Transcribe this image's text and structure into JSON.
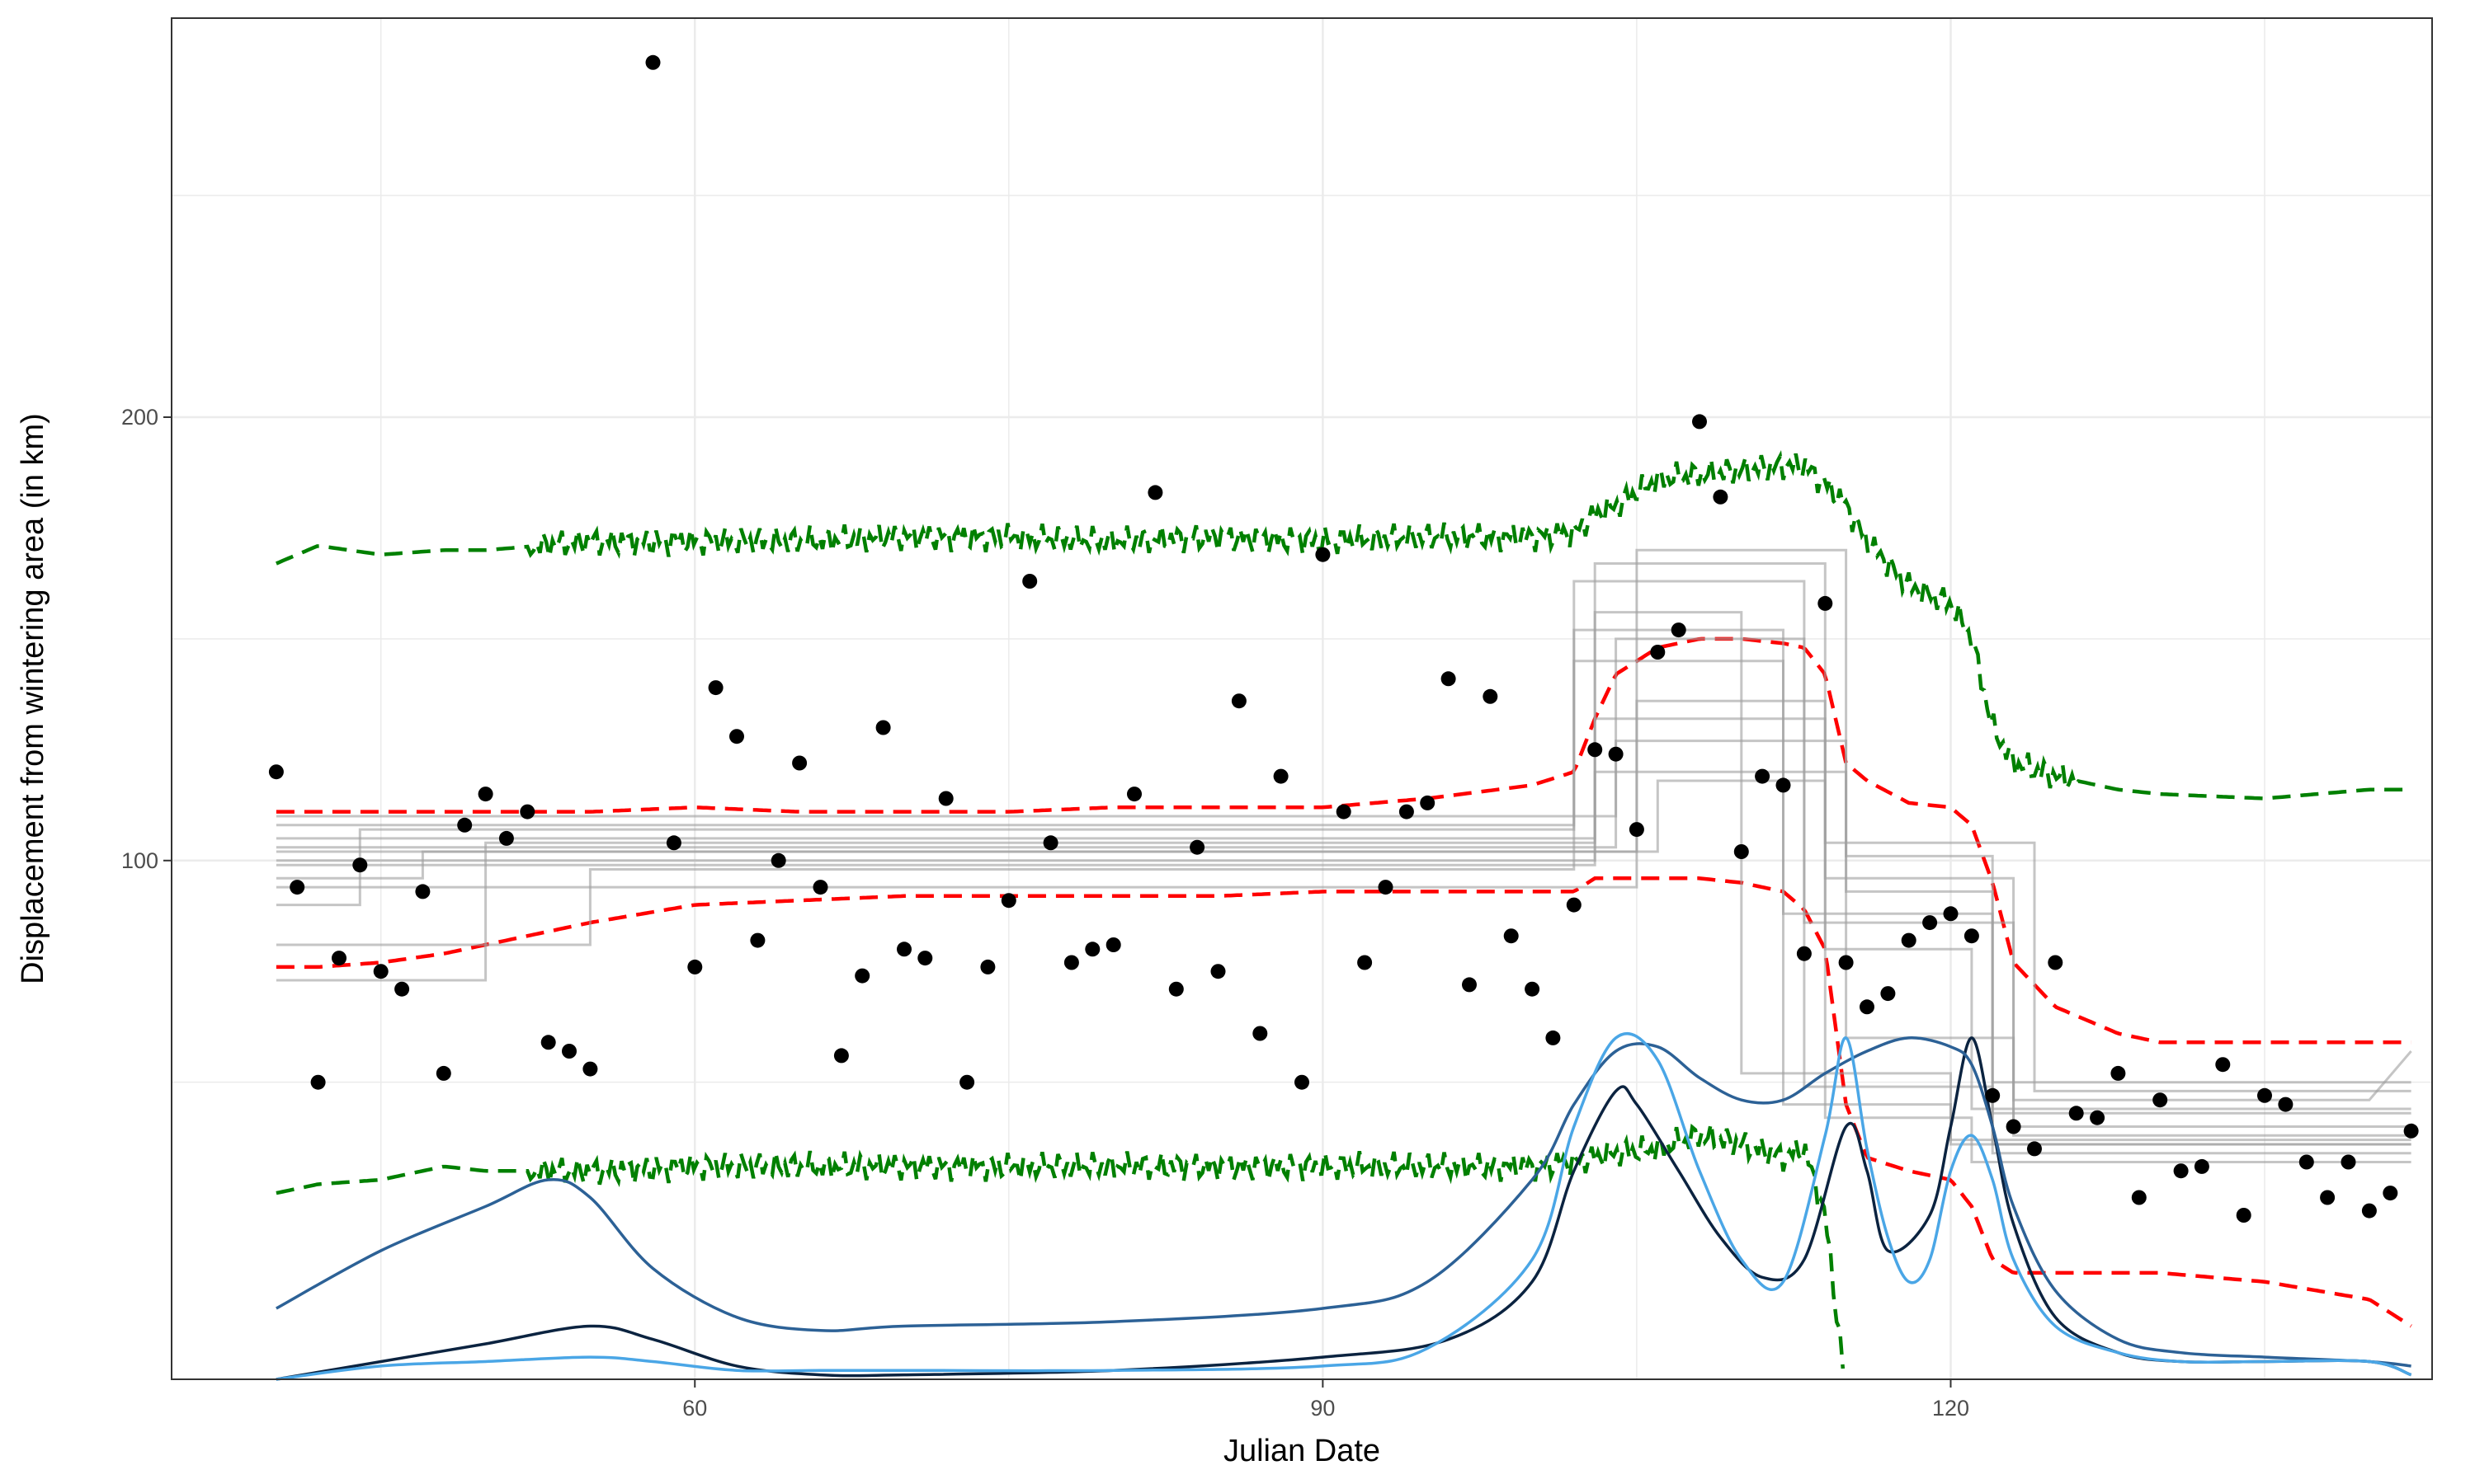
{
  "chart_data": {
    "type": "scatter",
    "title": "",
    "xlabel": "Julian Date",
    "ylabel": "Displacement from wintering area (in km)",
    "xlim": [
      35,
      143
    ],
    "ylim": [
      -17,
      290
    ],
    "x_ticks": [
      60,
      90,
      120
    ],
    "y_ticks": [
      100,
      200
    ],
    "x_tick_labels": [
      "60",
      "90",
      "120"
    ],
    "y_tick_labels": [
      "100",
      "200"
    ],
    "grid": true,
    "colors": {
      "points": "#000000",
      "envelope_outer": "#008000",
      "envelope_inner": "#ff0000",
      "step_lines": "#9e9e9e",
      "density": [
        "#0b2340",
        "#2c6196",
        "#4aa6e6"
      ],
      "grid": "#ebebeb",
      "panel_border": "#333333"
    },
    "points": [
      [
        40,
        120
      ],
      [
        41,
        94
      ],
      [
        42,
        50
      ],
      [
        43,
        78
      ],
      [
        44,
        99
      ],
      [
        45,
        75
      ],
      [
        46,
        71
      ],
      [
        47,
        93
      ],
      [
        48,
        52
      ],
      [
        49,
        108
      ],
      [
        50,
        115
      ],
      [
        51,
        105
      ],
      [
        52,
        111
      ],
      [
        53,
        59
      ],
      [
        54,
        57
      ],
      [
        55,
        53
      ],
      [
        58,
        280
      ],
      [
        59,
        104
      ],
      [
        60,
        76
      ],
      [
        61,
        139
      ],
      [
        62,
        128
      ],
      [
        63,
        82
      ],
      [
        64,
        100
      ],
      [
        65,
        122
      ],
      [
        66,
        94
      ],
      [
        67,
        56
      ],
      [
        68,
        74
      ],
      [
        69,
        130
      ],
      [
        70,
        80
      ],
      [
        71,
        78
      ],
      [
        72,
        114
      ],
      [
        73,
        50
      ],
      [
        74,
        76
      ],
      [
        75,
        91
      ],
      [
        76,
        163
      ],
      [
        77,
        104
      ],
      [
        78,
        77
      ],
      [
        79,
        80
      ],
      [
        80,
        81
      ],
      [
        81,
        115
      ],
      [
        82,
        183
      ],
      [
        83,
        71
      ],
      [
        84,
        103
      ],
      [
        85,
        75
      ],
      [
        86,
        136
      ],
      [
        87,
        61
      ],
      [
        88,
        119
      ],
      [
        89,
        50
      ],
      [
        90,
        169
      ],
      [
        91,
        111
      ],
      [
        92,
        77
      ],
      [
        93,
        94
      ],
      [
        94,
        111
      ],
      [
        95,
        113
      ],
      [
        96,
        141
      ],
      [
        97,
        72
      ],
      [
        98,
        137
      ],
      [
        99,
        83
      ],
      [
        100,
        71
      ],
      [
        101,
        60
      ],
      [
        102,
        90
      ],
      [
        103,
        125
      ],
      [
        104,
        124
      ],
      [
        105,
        107
      ],
      [
        106,
        147
      ],
      [
        107,
        152
      ],
      [
        108,
        199
      ],
      [
        109,
        182
      ],
      [
        110,
        102
      ],
      [
        111,
        119
      ],
      [
        112,
        117
      ],
      [
        113,
        79
      ],
      [
        114,
        158
      ],
      [
        115,
        77
      ],
      [
        116,
        67
      ],
      [
        117,
        70
      ],
      [
        118,
        82
      ],
      [
        119,
        86
      ],
      [
        120,
        88
      ],
      [
        121,
        83
      ],
      [
        122,
        47
      ],
      [
        123,
        40
      ],
      [
        124,
        35
      ],
      [
        125,
        77
      ],
      [
        126,
        43
      ],
      [
        127,
        42
      ],
      [
        128,
        52
      ],
      [
        129,
        24
      ],
      [
        130,
        46
      ],
      [
        131,
        30
      ],
      [
        132,
        31
      ],
      [
        133,
        54
      ],
      [
        134,
        20
      ],
      [
        135,
        47
      ],
      [
        136,
        45
      ],
      [
        137,
        32
      ],
      [
        138,
        24
      ],
      [
        139,
        32
      ],
      [
        140,
        21
      ],
      [
        141,
        25
      ],
      [
        142,
        39
      ]
    ],
    "envelope": {
      "x": [
        40,
        42,
        45,
        48,
        50,
        55,
        60,
        65,
        70,
        75,
        80,
        85,
        90,
        95,
        100,
        102,
        103,
        104,
        106,
        108,
        110,
        112,
        113,
        114,
        115,
        116,
        118,
        120,
        121,
        122,
        123,
        125,
        128,
        130,
        135,
        140,
        142
      ],
      "upper_outer": [
        167,
        171,
        169,
        170,
        170,
        172,
        172,
        172,
        173,
        173,
        172,
        173,
        172,
        173,
        173,
        174,
        178,
        180,
        186,
        187,
        188,
        189,
        189,
        185,
        180,
        172,
        162,
        158,
        150,
        130,
        122,
        119,
        116,
        115,
        114,
        116,
        116
      ],
      "upper_inner": [
        111,
        111,
        111,
        111,
        111,
        111,
        112,
        111,
        111,
        111,
        112,
        112,
        112,
        114,
        117,
        120,
        132,
        142,
        148,
        150,
        150,
        149,
        148,
        142,
        122,
        118,
        113,
        112,
        108,
        95,
        77,
        67,
        61,
        59,
        59,
        59,
        59
      ],
      "lower_inner": [
        76,
        76,
        77,
        79,
        81,
        86,
        90,
        91,
        92,
        92,
        92,
        92,
        93,
        93,
        93,
        93,
        96,
        96,
        96,
        96,
        95,
        93,
        89,
        80,
        45,
        33,
        30,
        28,
        22,
        10,
        7,
        7,
        7,
        7,
        5,
        1,
        -5
      ],
      "lower_outer": [
        25,
        27,
        28,
        31,
        30,
        30,
        31,
        31,
        31,
        31,
        31,
        31,
        31,
        31,
        31,
        32,
        33,
        34,
        35,
        38,
        36,
        33,
        35,
        20,
        -20,
        null,
        null,
        null,
        null,
        null,
        null,
        null,
        null,
        null,
        null,
        null,
        null
      ]
    },
    "step_lines": [
      [
        [
          40,
          81
        ],
        [
          55,
          81
        ],
        [
          55,
          98
        ],
        [
          102,
          98
        ],
        [
          102,
          152
        ],
        [
          112,
          152
        ],
        [
          112,
          45
        ],
        [
          120,
          45
        ],
        [
          120,
          37
        ],
        [
          142,
          37
        ]
      ],
      [
        [
          40,
          73
        ],
        [
          50,
          73
        ],
        [
          50,
          104
        ],
        [
          103,
          104
        ],
        [
          103,
          167
        ],
        [
          114,
          167
        ],
        [
          114,
          42
        ],
        [
          121,
          42
        ],
        [
          121,
          32
        ],
        [
          142,
          32
        ]
      ],
      [
        [
          40,
          90
        ],
        [
          44,
          90
        ],
        [
          44,
          107
        ],
        [
          102,
          107
        ],
        [
          102,
          163
        ],
        [
          113,
          163
        ],
        [
          113,
          49
        ],
        [
          122,
          49
        ],
        [
          122,
          34
        ],
        [
          142,
          34
        ]
      ],
      [
        [
          40,
          96
        ],
        [
          47,
          96
        ],
        [
          47,
          102
        ],
        [
          105,
          102
        ],
        [
          105,
          170
        ],
        [
          115,
          170
        ],
        [
          115,
          60
        ],
        [
          123,
          60
        ],
        [
          123,
          38
        ],
        [
          142,
          38
        ]
      ],
      [
        [
          40,
          100
        ],
        [
          103,
          100
        ],
        [
          103,
          156
        ],
        [
          110,
          156
        ],
        [
          110,
          52
        ],
        [
          120,
          52
        ],
        [
          120,
          36
        ],
        [
          142,
          36
        ]
      ],
      [
        [
          40,
          103
        ],
        [
          104,
          103
        ],
        [
          104,
          150
        ],
        [
          113,
          150
        ],
        [
          113,
          86
        ],
        [
          123,
          86
        ],
        [
          123,
          40
        ],
        [
          142,
          40
        ]
      ],
      [
        [
          40,
          105
        ],
        [
          103,
          105
        ],
        [
          103,
          132
        ],
        [
          114,
          132
        ],
        [
          114,
          80
        ],
        [
          121,
          80
        ],
        [
          121,
          44
        ],
        [
          142,
          44
        ]
      ],
      [
        [
          40,
          108
        ],
        [
          102,
          108
        ],
        [
          102,
          145
        ],
        [
          112,
          145
        ],
        [
          112,
          88
        ],
        [
          122,
          88
        ],
        [
          122,
          43
        ],
        [
          142,
          43
        ]
      ],
      [
        [
          40,
          110
        ],
        [
          104,
          110
        ],
        [
          104,
          127
        ],
        [
          115,
          127
        ],
        [
          115,
          101
        ],
        [
          122,
          101
        ],
        [
          122,
          36
        ],
        [
          142,
          36
        ]
      ],
      [
        [
          40,
          94
        ],
        [
          105,
          94
        ],
        [
          105,
          136
        ],
        [
          114,
          136
        ],
        [
          114,
          96
        ],
        [
          123,
          96
        ],
        [
          123,
          46
        ],
        [
          140,
          46
        ],
        [
          142,
          57
        ]
      ],
      [
        [
          40,
          99
        ],
        [
          103,
          99
        ],
        [
          103,
          120
        ],
        [
          115,
          120
        ],
        [
          115,
          93
        ],
        [
          122,
          93
        ],
        [
          122,
          50
        ],
        [
          142,
          50
        ]
      ],
      [
        [
          40,
          102
        ],
        [
          106,
          102
        ],
        [
          106,
          118
        ],
        [
          114,
          118
        ],
        [
          114,
          104
        ],
        [
          124,
          104
        ],
        [
          124,
          48
        ],
        [
          142,
          48
        ]
      ]
    ],
    "density_curves": [
      {
        "x": [
          40,
          45,
          50,
          55,
          58,
          62,
          66,
          70,
          80,
          90,
          96,
          100,
          102,
          104,
          105,
          107,
          109,
          111,
          113,
          115,
          116,
          117,
          119,
          120,
          121,
          122,
          123,
          125,
          128,
          131,
          135,
          140,
          142
        ],
        "y": [
          -17,
          -13,
          -9,
          -5,
          -8,
          -14,
          -16,
          -16,
          -15,
          -12,
          -8,
          5,
          30,
          48,
          45,
          30,
          15,
          6,
          10,
          40,
          30,
          12,
          20,
          40,
          60,
          40,
          18,
          -3,
          -11,
          -13,
          -13,
          -13,
          -16
        ]
      },
      {
        "x": [
          40,
          45,
          50,
          53,
          55,
          58,
          62,
          66,
          70,
          80,
          90,
          95,
          100,
          102,
          104,
          106,
          108,
          110,
          112,
          114,
          116,
          118,
          120,
          121,
          122,
          123,
          125,
          128,
          131,
          135,
          140,
          142
        ],
        "y": [
          -1,
          12,
          22,
          28,
          24,
          8,
          -3,
          -6,
          -5,
          -4,
          -1,
          5,
          28,
          45,
          57,
          58,
          51,
          46,
          46,
          52,
          57,
          60,
          58,
          54,
          40,
          22,
          3,
          -8,
          -11,
          -12,
          -13,
          -14
        ]
      },
      {
        "x": [
          40,
          45,
          50,
          55,
          58,
          62,
          66,
          70,
          80,
          90,
          95,
          100,
          102,
          104,
          106,
          108,
          110,
          112,
          114,
          115,
          116,
          117,
          118,
          119,
          120,
          121,
          122,
          123,
          125,
          128,
          131,
          135,
          140,
          142
        ],
        "y": [
          -17,
          -14,
          -13,
          -12,
          -13,
          -15,
          -15,
          -15,
          -15,
          -14,
          -10,
          10,
          40,
          60,
          55,
          30,
          10,
          5,
          38,
          60,
          35,
          15,
          5,
          10,
          30,
          38,
          28,
          10,
          -5,
          -11,
          -13,
          -13,
          -13,
          -16
        ]
      }
    ]
  }
}
